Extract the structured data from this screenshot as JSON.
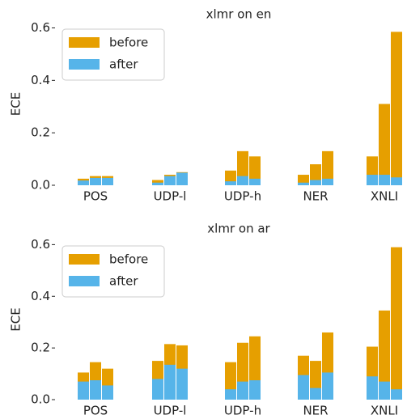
{
  "chart_data": [
    {
      "type": "bar",
      "title": "xlmr on en",
      "y_label": "ECE",
      "categories": [
        "POS",
        "UDP-l",
        "UDP-h",
        "NER",
        "XNLI"
      ],
      "series": [
        {
          "name": "before",
          "color": "#E69F00",
          "values": [
            [
              0.025,
              0.035,
              0.035
            ],
            [
              0.02,
              0.04,
              0.05
            ],
            [
              0.056,
              0.13,
              0.11
            ],
            [
              0.04,
              0.08,
              0.13
            ],
            [
              0.11,
              0.31,
              0.585
            ]
          ]
        },
        {
          "name": "after",
          "color": "#56B4E9",
          "values": [
            [
              0.018,
              0.028,
              0.028
            ],
            [
              0.01,
              0.035,
              0.048
            ],
            [
              0.015,
              0.035,
              0.025
            ],
            [
              0.01,
              0.02,
              0.025
            ],
            [
              0.04,
              0.04,
              0.03
            ]
          ]
        }
      ],
      "ylim": [
        0,
        0.62
      ],
      "yticks": [
        {
          "value": 0,
          "label": "0.0"
        },
        0.2,
        0.4,
        0.6
      ],
      "legend": "upper left"
    },
    {
      "type": "bar",
      "title": "xlmr on ar",
      "y_label": "ECE",
      "categories": [
        "POS",
        "UDP-l",
        "UDP-h",
        "NER",
        "XNLI"
      ],
      "series": [
        {
          "name": "before",
          "color": "#E69F00",
          "values": [
            [
              0.105,
              0.145,
              0.12
            ],
            [
              0.15,
              0.215,
              0.21
            ],
            [
              0.145,
              0.22,
              0.245
            ],
            [
              0.17,
              0.15,
              0.26
            ],
            [
              0.205,
              0.345,
              0.59
            ]
          ]
        },
        {
          "name": "after",
          "color": "#56B4E9",
          "values": [
            [
              0.07,
              0.075,
              0.055
            ],
            [
              0.08,
              0.135,
              0.12
            ],
            [
              0.04,
              0.07,
              0.075
            ],
            [
              0.095,
              0.045,
              0.105
            ],
            [
              0.09,
              0.07,
              0.04
            ]
          ]
        }
      ],
      "ylim": [
        0,
        0.62
      ],
      "yticks": [
        {
          "value": 0,
          "label": "0.0"
        },
        0.2,
        0.4,
        0.6
      ],
      "legend": "upper left"
    }
  ]
}
